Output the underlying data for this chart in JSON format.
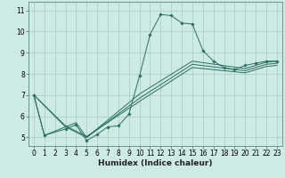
{
  "xlabel": "Humidex (Indice chaleur)",
  "bg_color": "#ceeae4",
  "grid_color": "#b0cdc8",
  "line_color": "#2a6e62",
  "xlim": [
    -0.5,
    23.5
  ],
  "ylim": [
    4.6,
    11.4
  ],
  "xticks": [
    0,
    1,
    2,
    3,
    4,
    5,
    6,
    7,
    8,
    9,
    10,
    11,
    12,
    13,
    14,
    15,
    16,
    17,
    18,
    19,
    20,
    21,
    22,
    23
  ],
  "yticks": [
    5,
    6,
    7,
    8,
    9,
    10,
    11
  ],
  "line1_x": [
    0,
    1,
    3,
    4,
    5,
    6,
    7,
    8,
    9,
    10,
    11,
    12,
    13,
    14,
    15,
    16,
    17,
    18,
    19,
    20,
    21,
    22,
    23
  ],
  "line1_y": [
    7.0,
    5.1,
    5.4,
    5.6,
    4.85,
    5.15,
    5.5,
    5.55,
    6.1,
    7.9,
    9.85,
    10.8,
    10.75,
    10.4,
    10.35,
    9.1,
    8.6,
    8.3,
    8.2,
    8.4,
    8.5,
    8.6,
    8.6
  ],
  "line2_x": [
    0,
    1,
    3,
    4,
    5,
    10,
    15,
    20,
    22,
    23
  ],
  "line2_y": [
    7.0,
    5.1,
    5.5,
    5.7,
    5.0,
    7.05,
    8.6,
    8.25,
    8.55,
    8.6
  ],
  "line3_x": [
    0,
    3,
    5,
    10,
    15,
    20,
    22,
    23
  ],
  "line3_y": [
    7.0,
    5.5,
    5.0,
    6.85,
    8.45,
    8.15,
    8.45,
    8.5
  ],
  "line4_x": [
    0,
    3,
    5,
    10,
    15,
    20,
    22,
    23
  ],
  "line4_y": [
    7.0,
    5.55,
    5.05,
    6.7,
    8.3,
    8.05,
    8.35,
    8.4
  ],
  "xlabel_fontsize": 6.5,
  "tick_fontsize": 5.5,
  "lw": 0.7,
  "ms": 1.8
}
